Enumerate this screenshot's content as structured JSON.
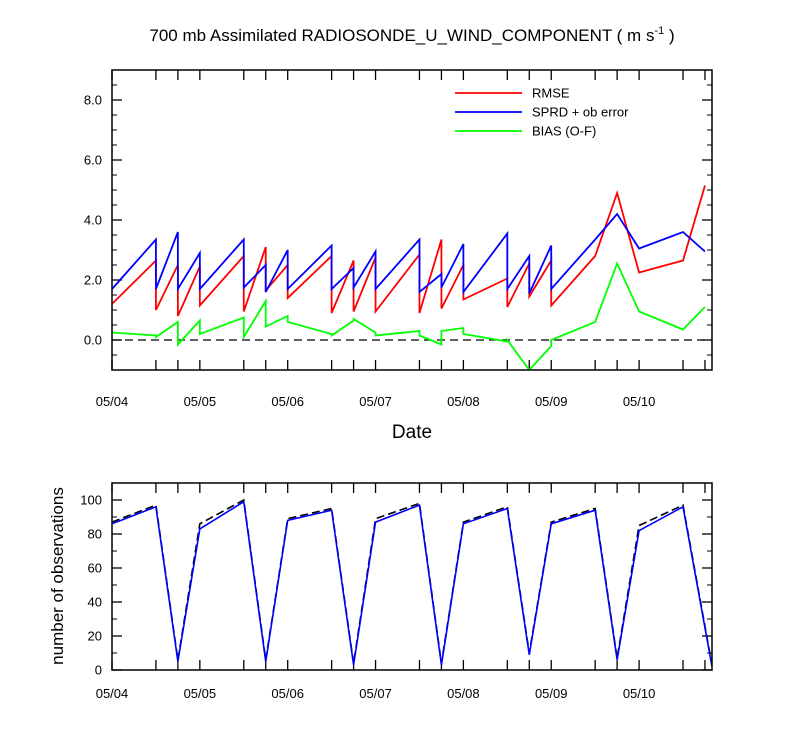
{
  "chart_data": [
    {
      "type": "line",
      "title_main": "700 mb Assimilated RADIOSONDE_U_WIND_COMPONENT ( m s",
      "title_exp": "-1",
      "title_close": " )",
      "xlabel": "Date",
      "ylabel": "",
      "xlim": [
        0,
        6.83
      ],
      "ylim": [
        -1,
        9
      ],
      "yticks": [
        "0.0",
        "2.0",
        "4.0",
        "6.0",
        "8.0"
      ],
      "ytick_values": [
        0,
        2,
        4,
        6,
        8
      ],
      "xticks": [
        "05/04",
        "05/05",
        "05/06",
        "05/07",
        "05/08",
        "05/09",
        "05/10"
      ],
      "xtick_values": [
        0,
        1,
        2,
        3,
        4,
        5,
        6
      ],
      "grid": false,
      "zero_line": true,
      "legend_position": "top-right",
      "x": [
        0,
        0.5,
        0.75,
        1,
        1.5,
        1.75,
        2,
        2.5,
        2.75,
        3,
        3.5,
        3.75,
        4,
        4.5,
        4.75,
        5,
        5.5,
        5.75,
        6,
        6.5,
        6.75
      ],
      "series": [
        {
          "name": "RMSE",
          "color": "#ff0000",
          "values": [
            1.2,
            2.65,
            2.5,
            2.45,
            2.8,
            3.1,
            2.5,
            2.8,
            2.65,
            2.75,
            2.85,
            3.35,
            2.5,
            2.05,
            2.55,
            2.65,
            2.8,
            4.9,
            2.25,
            2.65,
            5.15
          ],
          "tail": [
            1.0,
            0.8,
            1.15,
            0.95,
            1.65,
            1.4,
            0.9,
            0.95,
            0.95,
            0.9,
            1.05,
            1.35,
            1.1,
            1.45,
            1.15
          ]
        },
        {
          "name": "SPRD + ob error",
          "color": "#0000ff",
          "values": [
            1.7,
            3.35,
            3.6,
            2.9,
            3.35,
            2.5,
            3.0,
            3.15,
            2.4,
            2.95,
            3.35,
            2.2,
            3.2,
            3.55,
            2.8,
            3.15,
            3.35,
            4.2,
            3.05,
            3.6,
            2.95
          ],
          "tail": [
            1.7,
            1.7,
            1.7,
            1.75,
            1.6,
            1.7,
            1.7,
            1.75,
            1.7,
            1.6,
            1.75,
            1.6,
            1.7,
            1.55,
            1.7
          ]
        },
        {
          "name": "BIAS (O-F)",
          "color": "#00ff00",
          "values": [
            0.25,
            0.15,
            0.6,
            0.65,
            0.75,
            1.3,
            0.8,
            0.2,
            0.65,
            0.25,
            0.3,
            -0.15,
            0.4,
            -0.05,
            -1.0,
            -0.2,
            0.6,
            2.55,
            0.95,
            0.35,
            1.1
          ],
          "tail": [
            0.1,
            -0.15,
            0.2,
            0.1,
            0.45,
            0.6,
            0.15,
            0.7,
            0.15,
            0.15,
            0.3,
            0.2,
            0.0,
            -1.0,
            0.0
          ]
        }
      ]
    },
    {
      "type": "line",
      "title": "",
      "xlabel": "",
      "ylabel": "number of observations",
      "xlim": [
        0,
        6.83
      ],
      "ylim": [
        0,
        110
      ],
      "yticks": [
        "0",
        "20",
        "40",
        "60",
        "80",
        "100"
      ],
      "ytick_values": [
        0,
        20,
        40,
        60,
        80,
        100
      ],
      "xticks": [
        "05/04",
        "05/05",
        "05/06",
        "05/07",
        "05/08",
        "05/09",
        "05/10"
      ],
      "xtick_values": [
        0,
        1,
        2,
        3,
        4,
        5,
        6
      ],
      "grid": false,
      "x": [
        0,
        0.5,
        0.75,
        1,
        1.5,
        1.75,
        2,
        2.5,
        2.75,
        3,
        3.5,
        3.75,
        4,
        4.5,
        4.75,
        5,
        5.5,
        5.75,
        6,
        6.5,
        6.83
      ],
      "series": [
        {
          "color": "#000000",
          "dash": true,
          "values": [
            87,
            97,
            6,
            86,
            100,
            6,
            89,
            95,
            4,
            89,
            98,
            4,
            87,
            96,
            10,
            87,
            95,
            7,
            85,
            97,
            3
          ]
        },
        {
          "color": "#0000ff",
          "dash": false,
          "values": [
            86,
            96,
            5,
            83,
            99,
            5,
            88,
            94,
            3,
            87,
            97,
            3,
            86,
            95,
            9,
            86,
            94,
            6,
            82,
            96,
            2
          ]
        }
      ]
    }
  ]
}
